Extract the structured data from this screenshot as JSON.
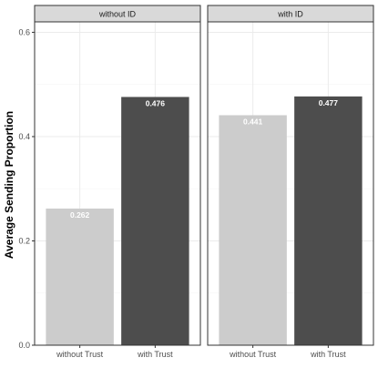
{
  "chart_data": {
    "type": "bar",
    "facet_variable": "ID condition",
    "panels": [
      "without ID",
      "with ID"
    ],
    "categories": [
      "without Trust",
      "with Trust"
    ],
    "values": [
      [
        0.262,
        0.476
      ],
      [
        0.441,
        0.477
      ]
    ],
    "data_labels": [
      [
        "0.262",
        "0.476"
      ],
      [
        "0.441",
        "0.477"
      ]
    ],
    "ylabel": "Average Sending Proportion",
    "xlabel": "",
    "ylim": [
      0,
      0.62
    ],
    "yticks": [
      0.0,
      0.2,
      0.4,
      0.6
    ],
    "ytick_labels": [
      "0.0",
      "0.2",
      "0.4",
      "0.6"
    ],
    "grid": true,
    "legend": "none",
    "colors": {
      "without Trust": "#cccccc",
      "with Trust": "#4d4d4d",
      "strip_fill": "#d9d9d9",
      "panel_border": "#333333",
      "grid_major": "#ebebeb",
      "grid_minor": "#f5f5f5"
    }
  }
}
